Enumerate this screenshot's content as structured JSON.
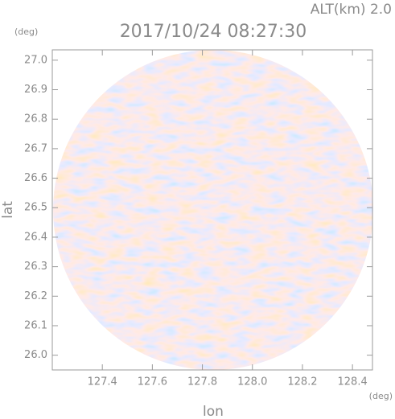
{
  "chart_data": {
    "type": "radar_map",
    "title": "2017/10/24 08:27:30",
    "subtitle": "ALT(km) 2.0",
    "x_label": "lon",
    "y_label": "lat",
    "x_unit": "(deg)",
    "y_unit": "(deg)",
    "xlim": [
      127.2,
      128.48
    ],
    "ylim": [
      25.95,
      27.035
    ],
    "xticks": [
      127.4,
      127.6,
      127.8,
      {
        "value": 128.0,
        "label": "128.0"
      },
      128.2,
      128.4
    ],
    "yticks": [
      {
        "value": 26.0,
        "label": "26.0"
      },
      26.1,
      26.2,
      26.3,
      26.4,
      26.5,
      26.6,
      26.7,
      26.8,
      26.9,
      {
        "value": 27.0,
        "label": "27.0"
      }
    ]
  }
}
